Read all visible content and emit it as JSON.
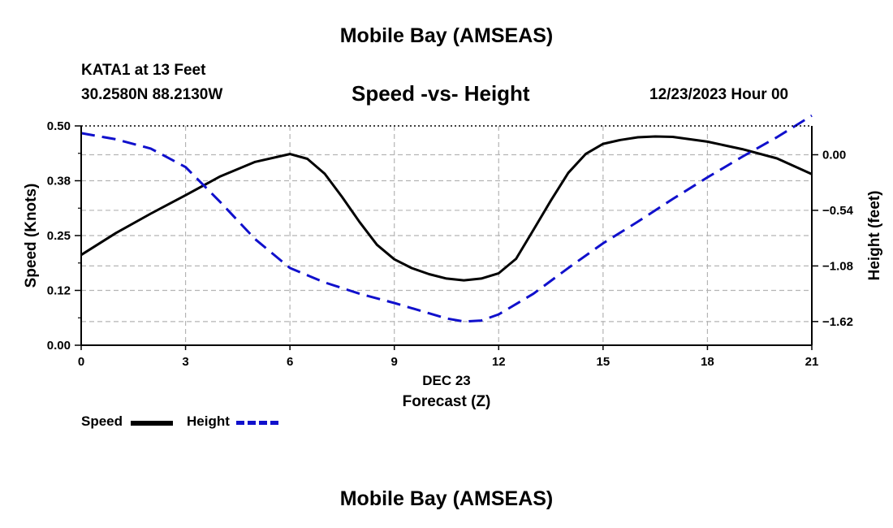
{
  "header": {
    "title_top": "Mobile Bay (AMSEAS)",
    "title_bottom": "Mobile Bay (AMSEAS)",
    "station": "KATA1 at 13 Feet",
    "latlon": "30.2580N  88.2130W",
    "subtitle": "Speed -vs- Height",
    "datetime": "12/23/2023 Hour 00"
  },
  "legend": {
    "speed_label": "Speed",
    "height_label": "Height"
  },
  "colors": {
    "speed": "#000000",
    "height": "#1010cc",
    "grid": "#b4b4b4"
  },
  "chart_data": {
    "type": "line",
    "title": "Speed -vs- Height",
    "xlabel": "Forecast (Z)",
    "xlabel_date": "DEC 23",
    "ylabel_left": "Speed (Knots)",
    "ylabel_right": "Height (feet)",
    "xlim": [
      0,
      21
    ],
    "ylim_left": [
      0,
      0.5
    ],
    "ylim_right": [
      -1.85,
      0.28
    ],
    "x_ticks": [
      "0",
      "3",
      "6",
      "9",
      "12",
      "15",
      "18",
      "21"
    ],
    "left_ticks": [
      {
        "value": 0.0,
        "label": "0.00"
      },
      {
        "value": 0.125,
        "label": "0.12"
      },
      {
        "value": 0.25,
        "label": "0.25"
      },
      {
        "value": 0.375,
        "label": "0.38"
      },
      {
        "value": 0.5,
        "label": "0.50"
      }
    ],
    "right_ticks": [
      {
        "value": 0.0,
        "label": "0.00"
      },
      {
        "value": -0.54,
        "label": "−0.54"
      },
      {
        "value": -1.08,
        "label": "−1.08"
      },
      {
        "value": -1.62,
        "label": "−1.62"
      }
    ],
    "grid": true,
    "legend_position": "bottom-left",
    "series": [
      {
        "name": "Speed",
        "axis": "left",
        "style": "solid",
        "x": [
          0,
          1,
          2,
          3,
          4,
          5,
          6,
          6.5,
          7,
          7.5,
          8,
          8.5,
          9,
          9.5,
          10,
          10.5,
          11,
          11.5,
          12,
          12.5,
          13,
          13.5,
          14,
          14.5,
          15,
          15.5,
          16,
          16.5,
          17,
          18,
          19,
          20,
          21
        ],
        "values": [
          0.206,
          0.256,
          0.3,
          0.342,
          0.385,
          0.418,
          0.436,
          0.425,
          0.391,
          0.338,
          0.281,
          0.229,
          0.196,
          0.176,
          0.162,
          0.152,
          0.148,
          0.152,
          0.164,
          0.197,
          0.263,
          0.33,
          0.393,
          0.436,
          0.459,
          0.468,
          0.474,
          0.476,
          0.475,
          0.464,
          0.447,
          0.426,
          0.39
        ]
      },
      {
        "name": "Height",
        "axis": "right",
        "style": "dashed",
        "x": [
          0,
          1,
          2,
          3,
          4,
          5,
          6,
          7,
          8,
          9,
          10,
          10.5,
          11,
          11.5,
          12,
          13,
          14,
          15,
          16,
          17,
          18,
          19,
          20,
          21
        ],
        "values": [
          0.21,
          0.15,
          0.06,
          -0.12,
          -0.46,
          -0.82,
          -1.1,
          -1.24,
          -1.35,
          -1.44,
          -1.54,
          -1.59,
          -1.62,
          -1.61,
          -1.55,
          -1.35,
          -1.1,
          -0.86,
          -0.65,
          -0.43,
          -0.22,
          -0.02,
          0.17,
          0.38
        ]
      }
    ]
  }
}
